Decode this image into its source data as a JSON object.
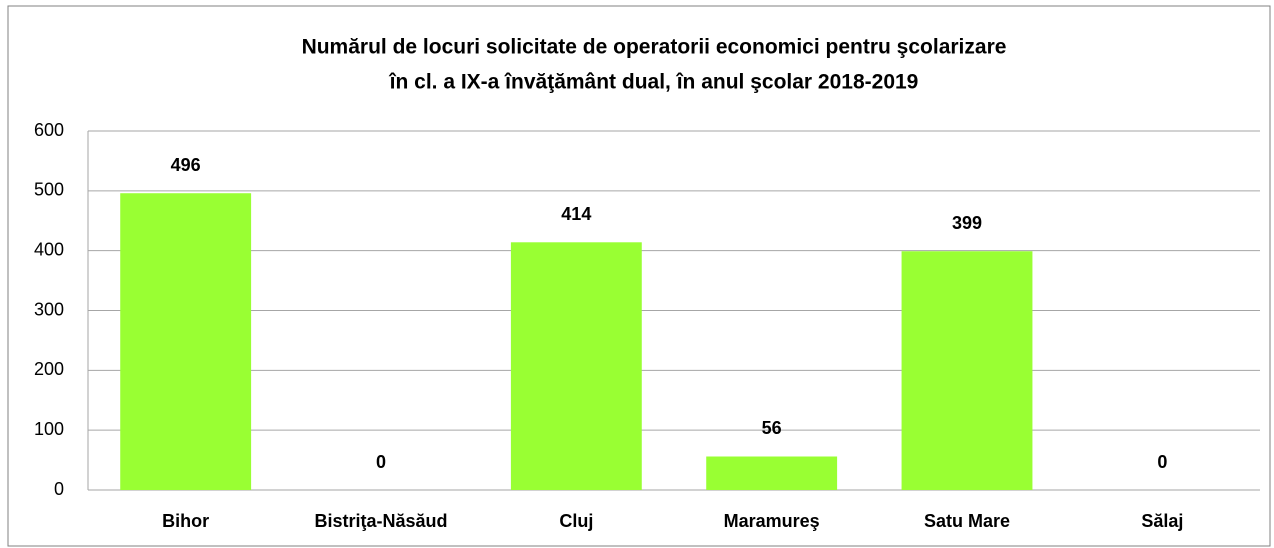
{
  "chart_data": {
    "type": "bar",
    "title": [
      "Numărul de locuri solicitate de operatorii economici pentru şcolarizare",
      "în cl. a IX-a învăţământ dual, în anul şcolar 2018-2019"
    ],
    "categories": [
      "Bihor",
      "Bistriţa-Năsăud",
      "Cluj",
      "Maramureş",
      "Satu Mare",
      "Sălaj"
    ],
    "values": [
      496,
      0,
      414,
      56,
      399,
      0
    ],
    "color": "#99ff33",
    "ylim": [
      0,
      600
    ],
    "yticks": [
      0,
      100,
      200,
      300,
      400,
      500,
      600
    ],
    "grid": true
  }
}
